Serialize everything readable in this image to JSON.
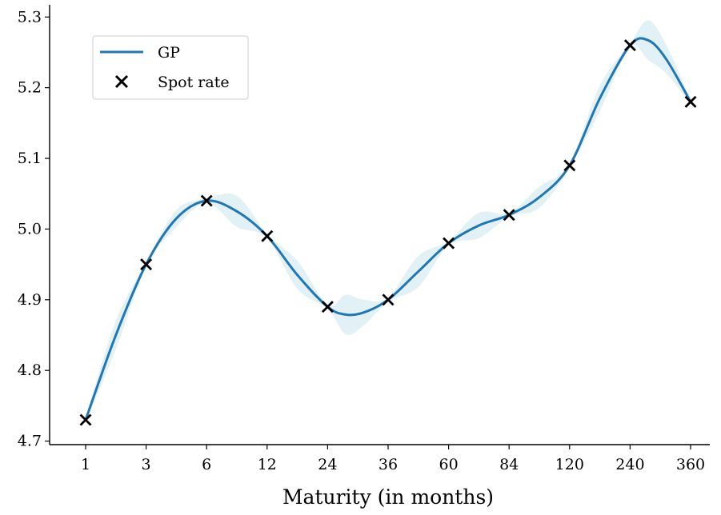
{
  "chart_data": {
    "type": "line",
    "title": "",
    "xlabel": "Maturity (in months)",
    "ylabel": "",
    "categories": [
      "1",
      "3",
      "6",
      "12",
      "24",
      "36",
      "60",
      "84",
      "120",
      "240",
      "360"
    ],
    "ylim": [
      4.695,
      5.315
    ],
    "yticks": [
      "4.7",
      "4.8",
      "4.9",
      "5.0",
      "5.1",
      "5.2",
      "5.3"
    ],
    "series": [
      {
        "name": "GP",
        "kind": "line",
        "color": "#1f77b4",
        "x": [
          0,
          0.5,
          1,
          1.5,
          2,
          2.5,
          3,
          3.5,
          4,
          4.3,
          4.6,
          5,
          5.5,
          6,
          6.5,
          7,
          7.5,
          8,
          8.5,
          9,
          9.3,
          9.6,
          10
        ],
        "y": [
          4.73,
          4.85,
          4.95,
          5.015,
          5.04,
          5.025,
          4.99,
          4.935,
          4.89,
          4.879,
          4.882,
          4.9,
          4.94,
          4.98,
          5.005,
          5.02,
          5.045,
          5.09,
          5.185,
          5.26,
          5.267,
          5.24,
          5.18
        ],
        "band_halfwidth": [
          0.003,
          0.02,
          0.003,
          0.012,
          0.003,
          0.022,
          0.003,
          0.02,
          0.003,
          0.028,
          0.018,
          0.003,
          0.022,
          0.003,
          0.018,
          0.003,
          0.015,
          0.003,
          0.018,
          0.003,
          0.028,
          0.02,
          0.003
        ]
      },
      {
        "name": "Spot rate",
        "kind": "scatter",
        "marker": "x",
        "color": "#000000",
        "x": [
          0,
          1,
          2,
          3,
          4,
          5,
          6,
          7,
          8,
          9,
          10
        ],
        "y": [
          4.73,
          4.95,
          5.04,
          4.99,
          4.89,
          4.9,
          4.98,
          5.02,
          5.09,
          5.26,
          5.18
        ]
      }
    ],
    "band_color": "#add8e6",
    "grid": false,
    "legend": {
      "position": "top-left",
      "entries": [
        "GP",
        "Spot rate"
      ]
    }
  }
}
